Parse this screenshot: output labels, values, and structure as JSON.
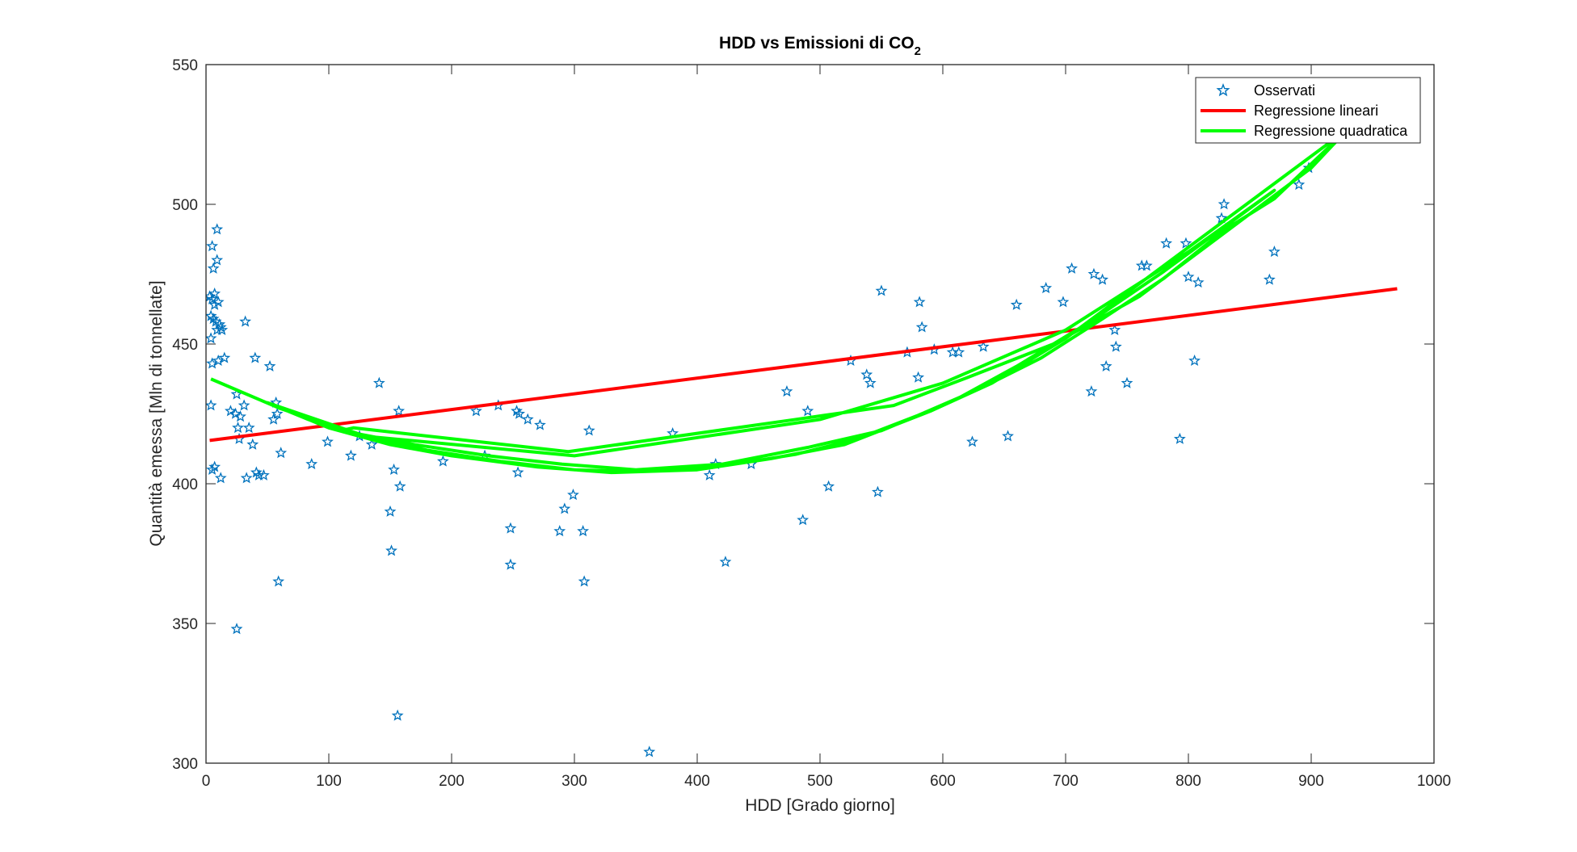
{
  "chart_data": {
    "type": "scatter",
    "title": "HDD vs Emissioni di CO",
    "title_subscript": "2",
    "xlabel": "HDD [Grado giorno]",
    "ylabel": "Quantità emessa [Mln di tonnellate]",
    "xlim": [
      0,
      1000
    ],
    "ylim": [
      300,
      550
    ],
    "xticks": [
      0,
      100,
      200,
      300,
      400,
      500,
      600,
      700,
      800,
      900,
      1000
    ],
    "yticks": [
      300,
      350,
      400,
      450,
      500,
      550
    ],
    "grid": false,
    "legend_position": "top-right",
    "legend": [
      "Osservati",
      "Regressione lineari",
      "Regressione quadratica"
    ],
    "colors": {
      "observed": "#0072BD",
      "linear": "#FF0000",
      "quadratic": "#00FF00"
    },
    "series": [
      {
        "name": "Osservati",
        "kind": "scatter",
        "marker": "star",
        "points": [
          [
            3,
            467
          ],
          [
            4,
            460
          ],
          [
            4,
            452
          ],
          [
            5,
            485
          ],
          [
            5,
            466
          ],
          [
            5,
            443
          ],
          [
            6,
            477
          ],
          [
            6,
            459
          ],
          [
            7,
            464
          ],
          [
            7,
            468
          ],
          [
            8,
            458
          ],
          [
            9,
            491
          ],
          [
            9,
            480
          ],
          [
            9,
            455
          ],
          [
            10,
            465
          ],
          [
            10,
            444
          ],
          [
            11,
            457
          ],
          [
            12,
            456
          ],
          [
            13,
            455
          ],
          [
            15,
            445
          ],
          [
            4,
            428
          ],
          [
            5,
            405
          ],
          [
            7,
            406
          ],
          [
            12,
            402
          ],
          [
            20,
            426
          ],
          [
            24,
            425
          ],
          [
            25,
            432
          ],
          [
            26,
            420
          ],
          [
            27,
            416
          ],
          [
            28,
            424
          ],
          [
            31,
            428
          ],
          [
            32,
            458
          ],
          [
            33,
            402
          ],
          [
            35,
            420
          ],
          [
            38,
            414
          ],
          [
            40,
            445
          ],
          [
            41,
            404
          ],
          [
            43,
            403
          ],
          [
            47,
            403
          ],
          [
            52,
            442
          ],
          [
            55,
            423
          ],
          [
            57,
            429
          ],
          [
            58,
            425
          ],
          [
            59,
            365
          ],
          [
            61,
            411
          ],
          [
            25,
            348
          ],
          [
            86,
            407
          ],
          [
            99,
            415
          ],
          [
            118,
            410
          ],
          [
            125,
            417
          ],
          [
            135,
            414
          ],
          [
            141,
            436
          ],
          [
            150,
            390
          ],
          [
            151,
            376
          ],
          [
            153,
            405
          ],
          [
            156,
            317
          ],
          [
            157,
            426
          ],
          [
            158,
            399
          ],
          [
            193,
            408
          ],
          [
            220,
            426
          ],
          [
            227,
            410
          ],
          [
            238,
            428
          ],
          [
            248,
            384
          ],
          [
            248,
            371
          ],
          [
            253,
            426
          ],
          [
            254,
            404
          ],
          [
            255,
            425
          ],
          [
            262,
            423
          ],
          [
            272,
            421
          ],
          [
            288,
            383
          ],
          [
            292,
            391
          ],
          [
            299,
            396
          ],
          [
            307,
            383
          ],
          [
            308,
            365
          ],
          [
            312,
            419
          ],
          [
            361,
            304
          ],
          [
            380,
            418
          ],
          [
            410,
            403
          ],
          [
            415,
            407
          ],
          [
            423,
            372
          ],
          [
            444,
            407
          ],
          [
            473,
            433
          ],
          [
            486,
            387
          ],
          [
            490,
            426
          ],
          [
            507,
            399
          ],
          [
            525,
            444
          ],
          [
            538,
            439
          ],
          [
            541,
            436
          ],
          [
            547,
            397
          ],
          [
            550,
            469
          ],
          [
            571,
            447
          ],
          [
            580,
            438
          ],
          [
            581,
            465
          ],
          [
            583,
            456
          ],
          [
            593,
            448
          ],
          [
            608,
            447
          ],
          [
            613,
            447
          ],
          [
            624,
            415
          ],
          [
            633,
            449
          ],
          [
            653,
            417
          ],
          [
            660,
            464
          ],
          [
            684,
            470
          ],
          [
            698,
            465
          ],
          [
            705,
            477
          ],
          [
            721,
            433
          ],
          [
            723,
            475
          ],
          [
            730,
            473
          ],
          [
            733,
            442
          ],
          [
            740,
            455
          ],
          [
            741,
            449
          ],
          [
            750,
            436
          ],
          [
            762,
            478
          ],
          [
            766,
            478
          ],
          [
            782,
            486
          ],
          [
            793,
            416
          ],
          [
            798,
            486
          ],
          [
            800,
            474
          ],
          [
            805,
            444
          ],
          [
            808,
            472
          ],
          [
            827,
            495
          ],
          [
            829,
            500
          ],
          [
            866,
            473
          ],
          [
            870,
            483
          ],
          [
            890,
            507
          ],
          [
            898,
            513
          ]
        ]
      },
      {
        "name": "Regressione lineari",
        "kind": "line",
        "points": [
          [
            3,
            415.5
          ],
          [
            970,
            469.8
          ]
        ]
      },
      {
        "name": "Regressione quadratica",
        "kind": "line",
        "points": [
          [
            4,
            437.5
          ],
          [
            60,
            427
          ],
          [
            120,
            418
          ],
          [
            180,
            412
          ],
          [
            240,
            408
          ],
          [
            300,
            405
          ],
          [
            340,
            404.5
          ],
          [
            380,
            405
          ],
          [
            430,
            407
          ],
          [
            480,
            410.5
          ],
          [
            530,
            416
          ],
          [
            580,
            424.5
          ],
          [
            630,
            434
          ],
          [
            680,
            445
          ],
          [
            730,
            459
          ],
          [
            780,
            473.5
          ],
          [
            830,
            491
          ],
          [
            870,
            502
          ],
          [
            930,
            527
          ],
          [
            700,
            452
          ],
          [
            640,
            436
          ],
          [
            590,
            426
          ],
          [
            520,
            414
          ],
          [
            460,
            409
          ],
          [
            400,
            405
          ],
          [
            330,
            404
          ],
          [
            270,
            406
          ],
          [
            200,
            410
          ],
          [
            150,
            414
          ],
          [
            100,
            420
          ],
          [
            50,
            429
          ],
          [
            130,
            417
          ],
          [
            300,
            410
          ],
          [
            500,
            423
          ],
          [
            600,
            436
          ],
          [
            700,
            455
          ],
          [
            800,
            483
          ],
          [
            870,
            505
          ],
          [
            780,
            476
          ],
          [
            720,
            458
          ],
          [
            660,
            442
          ],
          [
            610,
            430
          ],
          [
            550,
            419
          ],
          [
            490,
            413
          ],
          [
            420,
            407
          ],
          [
            350,
            405
          ],
          [
            290,
            407
          ],
          [
            230,
            410
          ],
          [
            170,
            414
          ],
          [
            110,
            419
          ],
          [
            120,
            420
          ],
          [
            295,
            411.5
          ],
          [
            480,
            423
          ],
          [
            560,
            428
          ],
          [
            620,
            438
          ],
          [
            690,
            450
          ],
          [
            760,
            467
          ],
          [
            830,
            490
          ],
          [
            900,
            513
          ],
          [
            930,
            527
          ]
        ]
      }
    ]
  }
}
